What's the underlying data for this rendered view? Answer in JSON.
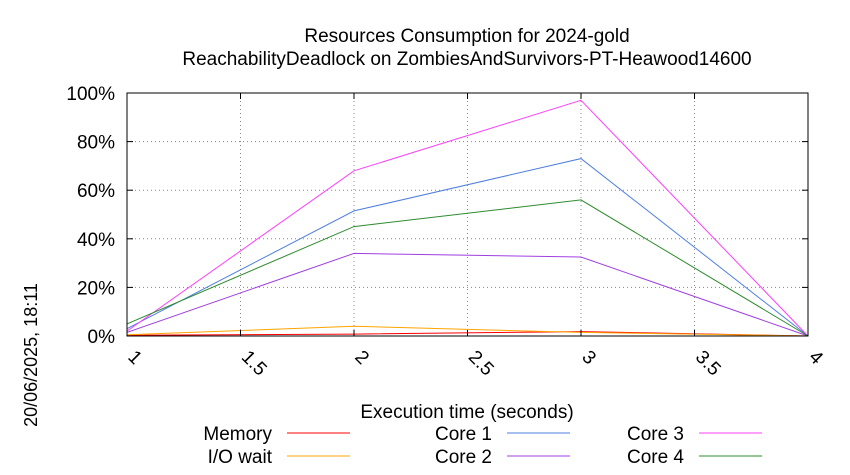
{
  "chart_data": {
    "type": "line",
    "title": "Resources Consumption for 2024-gold",
    "subtitle": "ReachabilityDeadlock on ZombiesAndSurvivors-PT-Heawood14600",
    "xlabel": "Execution time (seconds)",
    "ylabel": "",
    "side_label": "20/06/2025, 18:11",
    "xlim": [
      1,
      4
    ],
    "ylim": [
      0,
      100
    ],
    "grid": true,
    "x_ticks": [
      "1",
      "1.5",
      "2",
      "2.5",
      "3",
      "3.5",
      "4"
    ],
    "x_tick_values": [
      1,
      1.5,
      2,
      2.5,
      3,
      3.5,
      4
    ],
    "y_ticks": [
      "0%",
      "20%",
      "40%",
      "60%",
      "80%",
      "100%"
    ],
    "y_tick_values": [
      0,
      20,
      40,
      60,
      80,
      100
    ],
    "legend_position": "bottom",
    "series": [
      {
        "name": "Memory",
        "color": "#ff0000",
        "x": [
          1,
          2,
          3,
          4
        ],
        "values": [
          0.3,
          0.8,
          1.8,
          0
        ]
      },
      {
        "name": "I/O wait",
        "color": "#ffa500",
        "x": [
          1,
          2,
          3,
          4
        ],
        "values": [
          0.5,
          4,
          1.5,
          0
        ]
      },
      {
        "name": "Core 1",
        "color": "#4f7fdf",
        "x": [
          1,
          2,
          3,
          4
        ],
        "values": [
          3,
          51.5,
          73,
          0
        ]
      },
      {
        "name": "Core 2",
        "color": "#a040e0",
        "x": [
          1,
          2,
          3,
          4
        ],
        "values": [
          1.5,
          34,
          32.5,
          0
        ]
      },
      {
        "name": "Core 3",
        "color": "#ff40ff",
        "x": [
          1,
          2,
          3,
          4
        ],
        "values": [
          2,
          68,
          97,
          0
        ]
      },
      {
        "name": "Core 4",
        "color": "#2e8b2e",
        "x": [
          1,
          2,
          3,
          4
        ],
        "values": [
          5,
          45,
          56,
          0
        ]
      }
    ]
  }
}
